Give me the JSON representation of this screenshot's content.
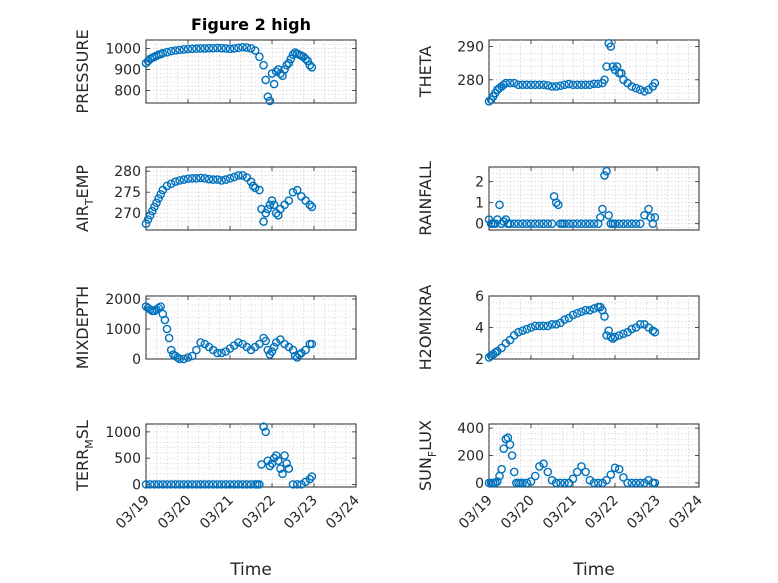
{
  "title": "Figure 2 high",
  "marker_color": "#0072BD",
  "x_tick_labels": [
    "03/19",
    "03/20",
    "03/21",
    "03/22",
    "03/23",
    "03/24"
  ],
  "x_label": "Time",
  "chart_data": [
    {
      "type": "scatter",
      "ylabel": "PRESSURE",
      "xlim": [
        0,
        5
      ],
      "ylim": [
        740,
        1040
      ],
      "yticks": [
        800,
        900,
        1000
      ],
      "grid": true,
      "x": [
        0,
        0.05,
        0.1,
        0.15,
        0.2,
        0.25,
        0.3,
        0.35,
        0.4,
        0.5,
        0.6,
        0.7,
        0.8,
        0.9,
        1,
        1.1,
        1.2,
        1.3,
        1.4,
        1.5,
        1.6,
        1.7,
        1.8,
        1.9,
        2,
        2.1,
        2.2,
        2.3,
        2.4,
        2.5,
        2.6,
        2.7,
        2.8,
        2.85,
        2.9,
        2.95,
        3.0,
        3.05,
        3.1,
        3.15,
        3.2,
        3.25,
        3.3,
        3.35,
        3.4,
        3.45,
        3.5,
        3.55,
        3.6,
        3.65,
        3.7,
        3.75,
        3.8,
        3.85,
        3.9,
        3.95
      ],
      "y": [
        930,
        940,
        950,
        955,
        960,
        965,
        970,
        973,
        977,
        982,
        987,
        990,
        993,
        995,
        997,
        998,
        999,
        1000,
        1000,
        1001,
        1001,
        1002,
        1001,
        1000,
        998,
        1000,
        1003,
        1006,
        1004,
        1000,
        990,
        960,
        920,
        850,
        770,
        750,
        880,
        830,
        890,
        900,
        880,
        870,
        900,
        920,
        930,
        950,
        970,
        980,
        975,
        970,
        965,
        960,
        950,
        940,
        920,
        910
      ],
      "series_note": ""
    },
    {
      "type": "scatter",
      "ylabel": "THETA",
      "xlim": [
        0,
        5
      ],
      "ylim": [
        273,
        292
      ],
      "yticks": [
        280,
        290
      ],
      "grid": true,
      "x": [
        0,
        0.05,
        0.1,
        0.15,
        0.2,
        0.25,
        0.3,
        0.35,
        0.4,
        0.5,
        0.6,
        0.7,
        0.8,
        0.9,
        1,
        1.1,
        1.2,
        1.3,
        1.4,
        1.5,
        1.6,
        1.7,
        1.8,
        1.9,
        2,
        2.1,
        2.2,
        2.3,
        2.4,
        2.5,
        2.6,
        2.7,
        2.75,
        2.8,
        2.85,
        2.9,
        2.95,
        3.0,
        3.05,
        3.1,
        3.15,
        3.2,
        3.3,
        3.4,
        3.5,
        3.6,
        3.7,
        3.8,
        3.9,
        3.95
      ],
      "y": [
        273.5,
        274,
        275,
        276,
        277,
        277.5,
        278,
        278.5,
        279,
        279,
        279,
        278.5,
        278.5,
        278.5,
        278.5,
        278.5,
        278.5,
        278.5,
        278.3,
        278,
        278,
        278.2,
        278.5,
        278.7,
        278.5,
        278.5,
        278.5,
        278.5,
        278.5,
        278.8,
        278.8,
        279,
        280,
        284,
        291,
        290,
        284,
        283,
        284,
        282,
        282,
        280,
        279,
        278,
        277.5,
        277,
        276.5,
        277,
        278,
        279
      ]
    },
    {
      "type": "scatter",
      "ylabel": "AIR_TEMP",
      "xlim": [
        0,
        5
      ],
      "ylim": [
        266,
        281
      ],
      "yticks": [
        270,
        275,
        280
      ],
      "grid": true,
      "x": [
        0,
        0.05,
        0.1,
        0.15,
        0.2,
        0.25,
        0.3,
        0.35,
        0.4,
        0.5,
        0.6,
        0.7,
        0.8,
        0.9,
        1,
        1.1,
        1.2,
        1.3,
        1.4,
        1.5,
        1.6,
        1.7,
        1.8,
        1.9,
        2,
        2.1,
        2.2,
        2.3,
        2.4,
        2.5,
        2.55,
        2.6,
        2.7,
        2.75,
        2.8,
        2.85,
        2.9,
        2.95,
        3.0,
        3.05,
        3.1,
        3.15,
        3.2,
        3.3,
        3.4,
        3.5,
        3.6,
        3.7,
        3.8,
        3.9,
        3.95
      ],
      "y": [
        267.5,
        268.5,
        269.5,
        270.5,
        271.5,
        272.5,
        273.5,
        274.5,
        275.5,
        276.5,
        277,
        277.5,
        277.8,
        278,
        278.2,
        278.3,
        278.3,
        278.4,
        278.3,
        278.1,
        278,
        278,
        277.8,
        278,
        278.3,
        278.6,
        279,
        279,
        278.5,
        277.5,
        276.5,
        276,
        275.5,
        271,
        268,
        270,
        271,
        272,
        273,
        272,
        270,
        269.5,
        271,
        272,
        273,
        275,
        275.5,
        274,
        273,
        272,
        271.5
      ]
    },
    {
      "type": "scatter",
      "ylabel": "RAINFALL",
      "xlim": [
        0,
        5
      ],
      "ylim": [
        -0.3,
        2.7
      ],
      "yticks": [
        0,
        1,
        2
      ],
      "grid": true,
      "x": [
        0,
        0.05,
        0.1,
        0.15,
        0.2,
        0.25,
        0.3,
        0.35,
        0.4,
        0.45,
        0.5,
        0.6,
        0.7,
        0.8,
        0.9,
        1,
        1.1,
        1.2,
        1.3,
        1.4,
        1.5,
        1.55,
        1.6,
        1.65,
        1.7,
        1.75,
        1.8,
        1.9,
        2,
        2.1,
        2.2,
        2.3,
        2.4,
        2.5,
        2.6,
        2.65,
        2.7,
        2.75,
        2.8,
        2.85,
        2.9,
        2.95,
        3.0,
        3.1,
        3.2,
        3.3,
        3.4,
        3.5,
        3.6,
        3.7,
        3.8,
        3.85,
        3.9,
        3.95
      ],
      "y": [
        0.2,
        0,
        0,
        0,
        0.2,
        0.9,
        0,
        0.1,
        0.2,
        0,
        0,
        0,
        0,
        0,
        0,
        0,
        0,
        0,
        0,
        0,
        0,
        1.3,
        1.0,
        0.9,
        0,
        0,
        0,
        0,
        0,
        0,
        0,
        0,
        0,
        0,
        0,
        0.3,
        0.7,
        2.3,
        2.5,
        0.4,
        0,
        0,
        0,
        0,
        0,
        0,
        0,
        0,
        0,
        0.4,
        0.7,
        0.3,
        0,
        0.3
      ]
    },
    {
      "type": "scatter",
      "ylabel": "MIXDEPTH",
      "xlim": [
        0,
        5
      ],
      "ylim": [
        0,
        2100
      ],
      "yticks": [
        0,
        1000,
        2000
      ],
      "grid": true,
      "x": [
        0,
        0.05,
        0.1,
        0.15,
        0.2,
        0.25,
        0.3,
        0.35,
        0.4,
        0.45,
        0.5,
        0.55,
        0.6,
        0.65,
        0.7,
        0.75,
        0.8,
        0.9,
        1,
        1.1,
        1.2,
        1.3,
        1.4,
        1.5,
        1.6,
        1.7,
        1.8,
        1.9,
        2,
        2.1,
        2.2,
        2.3,
        2.4,
        2.5,
        2.6,
        2.7,
        2.8,
        2.85,
        2.9,
        2.95,
        3.0,
        3.05,
        3.1,
        3.2,
        3.3,
        3.4,
        3.5,
        3.55,
        3.6,
        3.65,
        3.7,
        3.8,
        3.9,
        3.95
      ],
      "y": [
        1750,
        1700,
        1650,
        1600,
        1600,
        1650,
        1700,
        1750,
        1500,
        1300,
        1000,
        700,
        300,
        150,
        100,
        50,
        0,
        0,
        50,
        100,
        300,
        550,
        500,
        400,
        300,
        200,
        200,
        250,
        350,
        450,
        550,
        500,
        400,
        300,
        400,
        500,
        700,
        600,
        300,
        150,
        250,
        400,
        550,
        650,
        500,
        400,
        300,
        100,
        50,
        150,
        200,
        300,
        500,
        500
      ]
    },
    {
      "type": "scatter",
      "ylabel": "H2OMIXRA",
      "xlim": [
        0,
        5
      ],
      "ylim": [
        2,
        6
      ],
      "yticks": [
        2,
        4,
        6
      ],
      "grid": true,
      "x": [
        0,
        0.05,
        0.1,
        0.15,
        0.2,
        0.3,
        0.4,
        0.5,
        0.6,
        0.7,
        0.8,
        0.9,
        1,
        1.1,
        1.2,
        1.3,
        1.4,
        1.5,
        1.6,
        1.7,
        1.8,
        1.9,
        2,
        2.1,
        2.2,
        2.3,
        2.4,
        2.5,
        2.6,
        2.65,
        2.7,
        2.75,
        2.8,
        2.85,
        2.9,
        2.95,
        3.0,
        3.1,
        3.2,
        3.3,
        3.4,
        3.5,
        3.6,
        3.7,
        3.8,
        3.9,
        3.95
      ],
      "y": [
        2.1,
        2.2,
        2.3,
        2.4,
        2.5,
        2.7,
        3.0,
        3.2,
        3.5,
        3.7,
        3.8,
        3.9,
        4.0,
        4.1,
        4.1,
        4.1,
        4.1,
        4.2,
        4.2,
        4.3,
        4.5,
        4.6,
        4.8,
        4.9,
        5.0,
        5.1,
        5.1,
        5.2,
        5.3,
        5.3,
        5.1,
        4.7,
        3.5,
        3.8,
        3.4,
        3.3,
        3.4,
        3.5,
        3.6,
        3.7,
        3.9,
        4.0,
        4.2,
        4.2,
        4.0,
        3.8,
        3.7
      ]
    },
    {
      "type": "scatter",
      "ylabel": "TERR_MSL",
      "xlim": [
        0,
        5
      ],
      "ylim": [
        -50,
        1150
      ],
      "yticks": [
        0,
        500,
        1000
      ],
      "grid": true,
      "x": [
        0,
        0.1,
        0.2,
        0.3,
        0.4,
        0.5,
        0.6,
        0.7,
        0.8,
        0.9,
        1,
        1.1,
        1.2,
        1.3,
        1.4,
        1.5,
        1.6,
        1.7,
        1.8,
        1.9,
        2,
        2.1,
        2.2,
        2.3,
        2.4,
        2.5,
        2.6,
        2.65,
        2.7,
        2.75,
        2.8,
        2.85,
        2.9,
        2.95,
        3.0,
        3.05,
        3.1,
        3.15,
        3.2,
        3.25,
        3.3,
        3.35,
        3.4,
        3.5,
        3.6,
        3.7,
        3.8,
        3.9,
        3.95
      ],
      "y": [
        0,
        0,
        0,
        0,
        0,
        0,
        0,
        0,
        0,
        0,
        0,
        0,
        0,
        0,
        0,
        0,
        0,
        0,
        0,
        0,
        0,
        0,
        0,
        0,
        0,
        0,
        0,
        0,
        0,
        380,
        1100,
        1000,
        450,
        350,
        400,
        500,
        550,
        450,
        300,
        200,
        550,
        400,
        300,
        0,
        0,
        0,
        50,
        100,
        150
      ]
    },
    {
      "type": "scatter",
      "ylabel": "SUN_FLUX",
      "xlim": [
        0,
        5
      ],
      "ylim": [
        -30,
        430
      ],
      "yticks": [
        0,
        200,
        400
      ],
      "grid": true,
      "x": [
        0,
        0.05,
        0.1,
        0.15,
        0.2,
        0.25,
        0.3,
        0.35,
        0.4,
        0.45,
        0.5,
        0.55,
        0.6,
        0.65,
        0.7,
        0.75,
        0.8,
        0.9,
        1,
        1.1,
        1.2,
        1.3,
        1.4,
        1.5,
        1.6,
        1.7,
        1.8,
        1.9,
        2,
        2.1,
        2.2,
        2.3,
        2.4,
        2.5,
        2.6,
        2.7,
        2.8,
        2.9,
        3.0,
        3.1,
        3.2,
        3.3,
        3.4,
        3.5,
        3.6,
        3.7,
        3.8,
        3.9,
        3.95
      ],
      "y": [
        0,
        0,
        0,
        0,
        10,
        50,
        100,
        250,
        320,
        330,
        280,
        200,
        80,
        0,
        0,
        0,
        0,
        0,
        10,
        50,
        120,
        140,
        80,
        20,
        0,
        0,
        0,
        0,
        30,
        80,
        120,
        80,
        20,
        0,
        0,
        0,
        20,
        60,
        110,
        100,
        40,
        0,
        0,
        0,
        0,
        0,
        20,
        0,
        0
      ]
    }
  ]
}
